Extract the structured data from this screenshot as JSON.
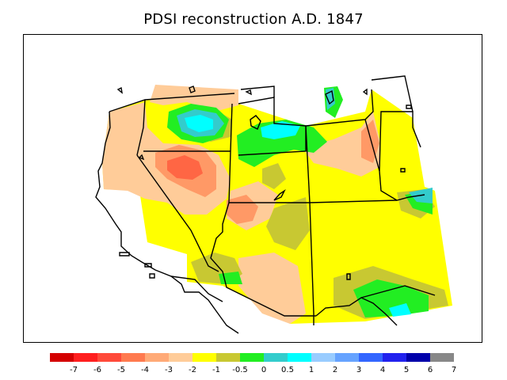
{
  "title": "PDSI reconstruction A.D. 1847",
  "legend": {
    "colors": [
      "#d40000",
      "#ff1f1f",
      "#ff4a3a",
      "#ff7a4f",
      "#ffaa77",
      "#ffcc99",
      "#ffff00",
      "#c8c832",
      "#22ee22",
      "#33cccc",
      "#00ffff",
      "#99ccff",
      "#66a3ff",
      "#3366ff",
      "#2222ee",
      "#0000aa",
      "#888888"
    ],
    "labels": [
      "-7",
      "-6",
      "-5",
      "-4",
      "-3",
      "-2",
      "-1",
      "-0.5",
      "0",
      "0.5",
      "1",
      "2",
      "3",
      "4",
      "5",
      "6",
      "7"
    ]
  },
  "map_colors": {
    "yellow": "#ffff00",
    "tan": "#ffcc99",
    "salmon": "#ff9966",
    "red": "#ff6644",
    "olive": "#c8c832",
    "green": "#22ee22",
    "teal": "#33cccc",
    "cyan": "#00ffff"
  }
}
